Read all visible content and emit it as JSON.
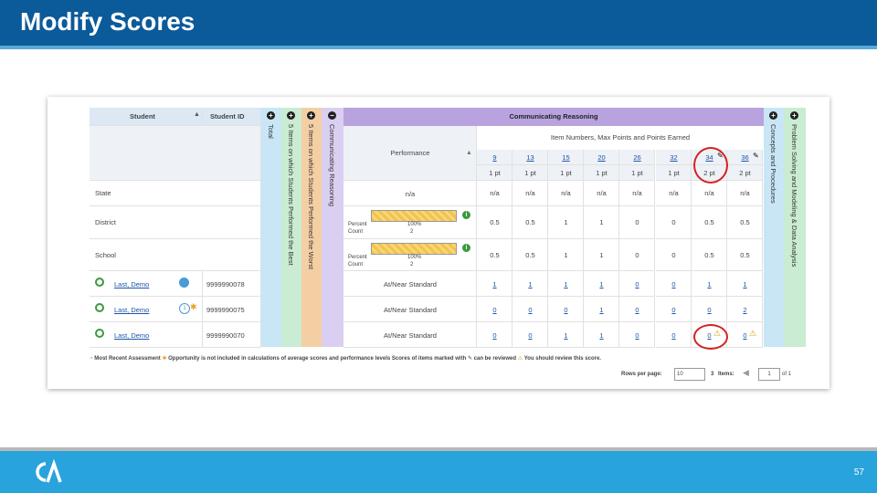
{
  "slide": {
    "title": "Modify Scores",
    "page_number": "57",
    "colors": {
      "header": "#0b5a9a",
      "footer": "#29a3dc",
      "purple": "#c9b8e8",
      "green": "#c9ecd2",
      "orange": "#f4cfa4",
      "blue": "#c8e6f6"
    }
  },
  "table": {
    "header": {
      "student": "Student",
      "student_id": "Student ID",
      "total": "Total",
      "items_best": "5 Items on which Students Performed the Best",
      "items_worst": "5 Items on which Students Performed the Worst",
      "claim_vertical": "Communicating Reasoning",
      "claim": "Communicating Reasoning",
      "item_numbers": "Item Numbers, Max Points and Points Earned",
      "performance": "Performance",
      "concepts": "Concepts and Procedures",
      "problem_solving": "Problem Solving and Modeling & Data Analysis"
    },
    "items": [
      "9",
      "13",
      "15",
      "20",
      "26",
      "32",
      "34",
      "36"
    ],
    "max_points": [
      "1 pt",
      "1 pt",
      "1 pt",
      "1 pt",
      "1 pt",
      "1 pt",
      "2 pt",
      "2 pt"
    ],
    "rows": [
      {
        "label": "State",
        "performance": "n/a",
        "scores": [
          "n/a",
          "n/a",
          "n/a",
          "n/a",
          "n/a",
          "n/a",
          "n/a",
          "n/a"
        ]
      },
      {
        "label": "District",
        "percent_label": "Percent",
        "count_label": "Count",
        "percent": "100%",
        "count": "2",
        "scores": [
          "0.5",
          "0.5",
          "1",
          "1",
          "0",
          "0",
          "0.5",
          "0.5"
        ]
      },
      {
        "label": "School",
        "percent_label": "Percent",
        "count_label": "Count",
        "percent": "100%",
        "count": "2",
        "scores": [
          "0.5",
          "0.5",
          "1",
          "1",
          "0",
          "0",
          "0.5",
          "0.5"
        ]
      }
    ],
    "students": [
      {
        "name": "Last, Demo",
        "id": "9999990078",
        "performance": "At/Near Standard",
        "scores": [
          "1",
          "1",
          "1",
          "1",
          "0",
          "0",
          "1",
          "1"
        ]
      },
      {
        "name": "Last, Demo",
        "id": "9999990075",
        "badge": "1",
        "performance": "At/Near Standard",
        "scores": [
          "0",
          "0",
          "0",
          "1",
          "0",
          "0",
          "0",
          "2"
        ]
      },
      {
        "name": "Last, Demo",
        "id": "9999990070",
        "performance": "At/Near Standard",
        "scores": [
          "0",
          "0",
          "1",
          "1",
          "0",
          "0",
          "0",
          "0"
        ]
      }
    ],
    "legend": {
      "most_recent": "Most Recent Assessment",
      "not_included": "Opportunity is not included in calculations of average scores and performance levels",
      "reviewed": "Scores of items marked with",
      "reviewed_suffix": "can be reviewed",
      "review_warning": "You should review this score."
    },
    "pager": {
      "rows_per_page_label": "Rows per page:",
      "rows_per_page": "10",
      "items_count": "3",
      "items_label": "Items:",
      "page": "1",
      "of": "of 1"
    }
  }
}
